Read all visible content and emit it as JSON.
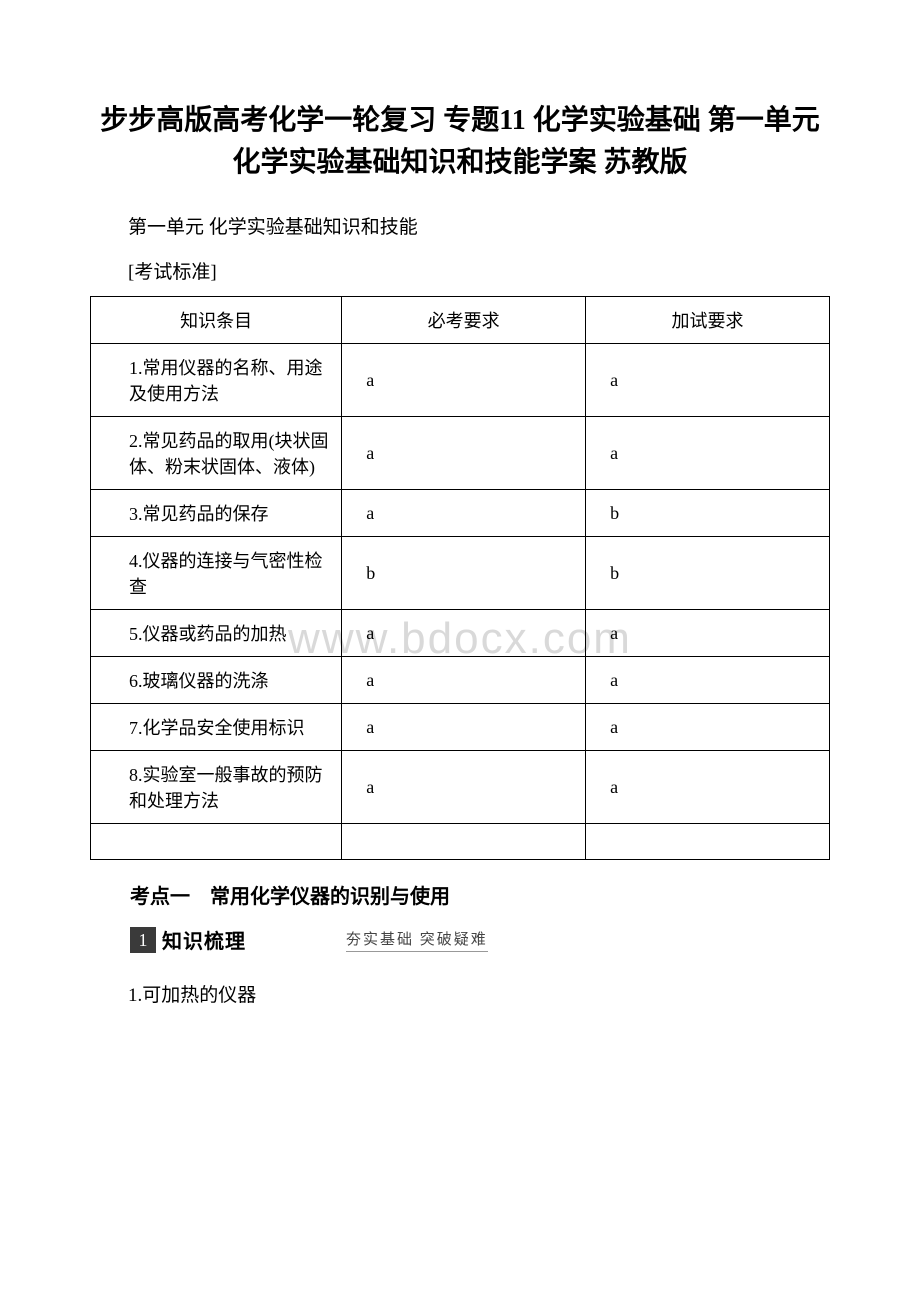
{
  "title": "步步高版高考化学一轮复习 专题11 化学实验基础 第一单元 化学实验基础知识和技能学案 苏教版",
  "subtitle": "第一单元 化学实验基础知识和技能",
  "exam_standard": "[考试标准]",
  "watermark": "www.bdocx.com",
  "table": {
    "headers": [
      "知识条目",
      "必考要求",
      "加试要求"
    ],
    "rows": [
      {
        "item": "1.常用仪器的名称、用途及使用方法",
        "req1": "a",
        "req2": "a"
      },
      {
        "item": "2.常见药品的取用(块状固体、粉末状固体、液体)",
        "req1": "a",
        "req2": "a"
      },
      {
        "item": "3.常见药品的保存",
        "req1": "a",
        "req2": "b"
      },
      {
        "item": "4.仪器的连接与气密性检查",
        "req1": "b",
        "req2": "b"
      },
      {
        "item": "5.仪器或药品的加热",
        "req1": "a",
        "req2": "a"
      },
      {
        "item": "6.玻璃仪器的洗涤",
        "req1": "a",
        "req2": "a"
      },
      {
        "item": "7.化学品安全使用标识",
        "req1": "a",
        "req2": "a"
      },
      {
        "item": "8.实验室一般事故的预防和处理方法",
        "req1": "a",
        "req2": "a"
      }
    ]
  },
  "kaodian": "考点一　常用化学仪器的识别与使用",
  "section": {
    "number": "1",
    "label": "知识梳理",
    "sublabel": "夯实基础  突破疑难"
  },
  "body_text": "1.可加热的仪器"
}
